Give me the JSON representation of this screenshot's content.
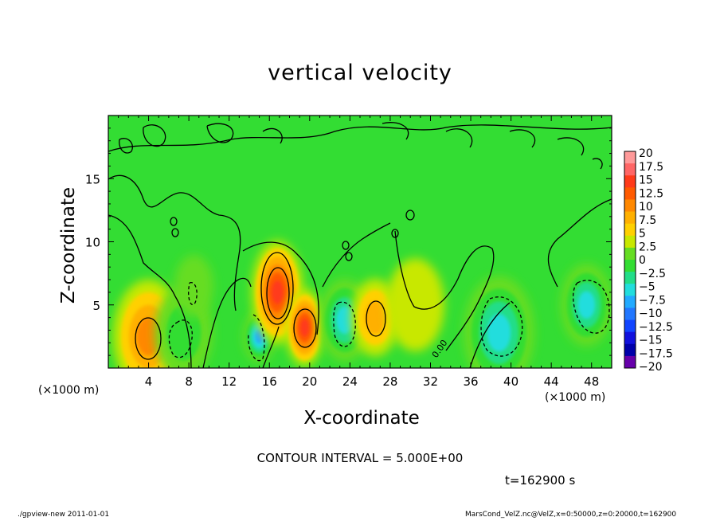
{
  "footer": {
    "left": "./gpview-new  2011-01-01",
    "right": "MarsCond_VelZ.nc@VelZ,x=0:50000,z=0:20000,t=162900"
  },
  "colors": {
    "background_field": "#33dd33",
    "contour_line": "#000000"
  },
  "chart_data": {
    "type": "heatmap",
    "title": "vertical velocity",
    "xlabel": "X-coordinate",
    "ylabel": "Z-coordinate",
    "x_unit_label": "(×1000 m)",
    "x_unit_label_right": "(×1000 m)",
    "xlim": [
      0,
      50
    ],
    "ylim": [
      0,
      20
    ],
    "x_ticks": [
      4,
      8,
      12,
      16,
      20,
      24,
      28,
      32,
      36,
      40,
      44,
      48
    ],
    "y_ticks": [
      5,
      10,
      15
    ],
    "contour_interval_text": "CONTOUR INTERVAL = 5.000E+00",
    "contour_label": "0.00",
    "time_text": "t=162900 s",
    "colorbar": {
      "levels": [
        20,
        17.5,
        15,
        12.5,
        10,
        7.5,
        5,
        2.5,
        0,
        -2.5,
        -5,
        -7.5,
        -10,
        -12.5,
        -15,
        -17.5,
        -20
      ],
      "colors": [
        "#ff9a9a",
        "#ff6666",
        "#ff3a1a",
        "#ff5a00",
        "#ff8800",
        "#ffb000",
        "#ffd000",
        "#c8e800",
        "#66dd22",
        "#33dd33",
        "#22dd88",
        "#22dddd",
        "#22aaff",
        "#2277ff",
        "#1144ff",
        "#1111dd",
        "#0000aa",
        "#6600aa"
      ]
    },
    "features": [
      {
        "x": 4,
        "z": 2.5,
        "w": 2.2,
        "value": 10
      },
      {
        "x": 7.5,
        "z": 2.8,
        "w": 1.8,
        "value": -5
      },
      {
        "x": 8.5,
        "z": 6.5,
        "w": 1.2,
        "value": -2.5
      },
      {
        "x": 15,
        "z": 2.5,
        "w": 1.0,
        "value": -12.5
      },
      {
        "x": 16.8,
        "z": 6.0,
        "w": 1.6,
        "value": 15
      },
      {
        "x": 19.5,
        "z": 3.2,
        "w": 1.2,
        "value": 15
      },
      {
        "x": 23.5,
        "z": 3.8,
        "w": 1.6,
        "value": -10
      },
      {
        "x": 26.5,
        "z": 4.0,
        "w": 1.5,
        "value": 7.5
      },
      {
        "x": 38.8,
        "z": 2.8,
        "w": 2.2,
        "value": -10
      },
      {
        "x": 47.5,
        "z": 5.0,
        "w": 1.6,
        "value": -10
      },
      {
        "x": 30.5,
        "z": 5.0,
        "w": 1.8,
        "value": 2.5
      }
    ]
  }
}
